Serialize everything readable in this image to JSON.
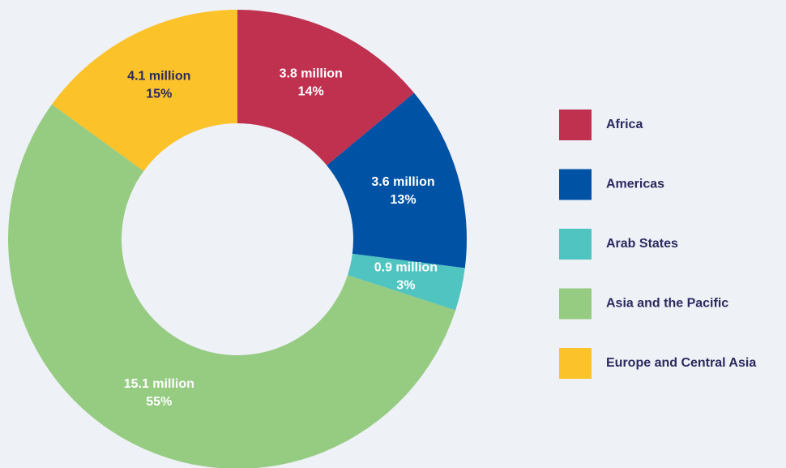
{
  "chart_data": {
    "type": "donut",
    "categories": [
      "Africa",
      "Americas",
      "Arab States",
      "Asia and the Pacific",
      "Europe and Central Asia"
    ],
    "values": [
      14,
      13,
      3,
      55,
      15
    ],
    "value_labels": [
      "14%",
      "13%",
      "3%",
      "55%",
      "15%"
    ],
    "amounts": [
      3.8,
      3.6,
      0.9,
      15.1,
      4.1
    ],
    "amount_labels": [
      "3.8 million",
      "3.6 million",
      "0.9 million",
      "15.1 million",
      "4.1 million"
    ],
    "colors": [
      "#c0304f",
      "#0052a5",
      "#4fc4c0",
      "#96cb82",
      "#fbc22a"
    ],
    "legend": "right"
  }
}
